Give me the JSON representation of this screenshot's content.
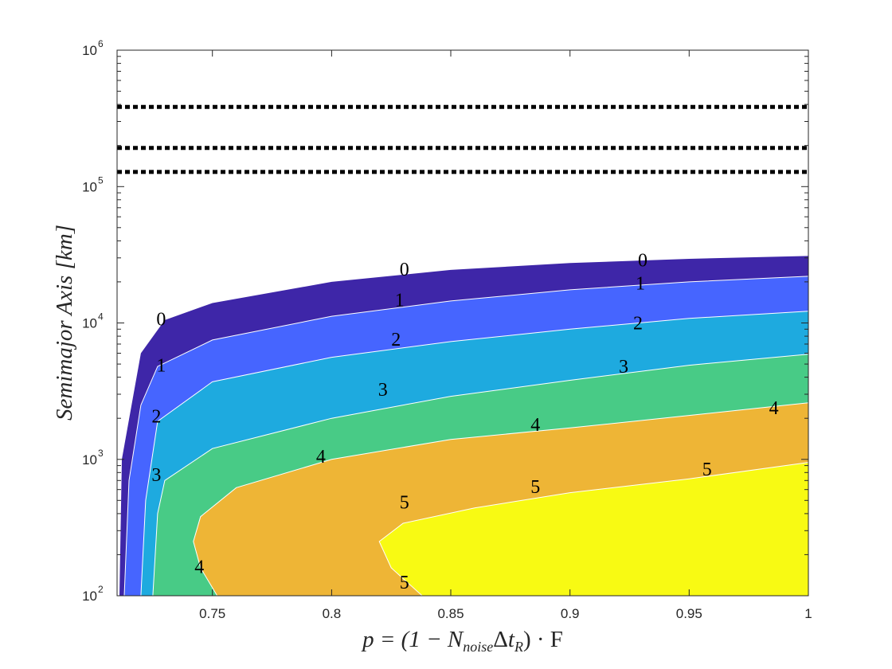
{
  "chart_data": {
    "type": "contour",
    "xlabel": "p = (1 − N_noise Δt_R) · F",
    "ylabel": "Semimajor Axis [km]",
    "xlim": [
      0.71,
      1.0
    ],
    "ylim": [
      100,
      1000000
    ],
    "yscale": "log",
    "grid": false,
    "x_ticks": [
      "0.75",
      "0.8",
      "0.85",
      "0.9",
      "0.95",
      "1"
    ],
    "y_ticks": [
      {
        "base": "10",
        "exp": "2"
      },
      {
        "base": "10",
        "exp": "3"
      },
      {
        "base": "10",
        "exp": "4"
      },
      {
        "base": "10",
        "exp": "5"
      },
      {
        "base": "10",
        "exp": "6"
      }
    ],
    "x_tick_values": [
      0.75,
      0.8,
      0.85,
      0.9,
      0.95,
      1.0
    ],
    "y_tick_values": [
      100,
      1000,
      10000,
      100000,
      1000000
    ],
    "reference_lines": [
      {
        "y": 384000,
        "style": "dotted",
        "color": "#000000"
      },
      {
        "y": 192000,
        "style": "dotted",
        "color": "#000000"
      },
      {
        "y": 128000,
        "style": "dotted",
        "color": "#000000"
      }
    ],
    "levels": [
      {
        "level": 0,
        "color": "#3e26a8",
        "boundary": [
          [
            0.711,
            100
          ],
          [
            0.712,
            1000
          ],
          [
            0.72,
            6000
          ],
          [
            0.73,
            10500
          ],
          [
            0.75,
            14000
          ],
          [
            0.8,
            20000
          ],
          [
            0.85,
            24500
          ],
          [
            0.9,
            27500
          ],
          [
            0.95,
            29500
          ],
          [
            1.0,
            31000
          ]
        ]
      },
      {
        "level": 1,
        "color": "#4665ff",
        "boundary": [
          [
            0.713,
            100
          ],
          [
            0.715,
            700
          ],
          [
            0.72,
            2500
          ],
          [
            0.727,
            4800
          ],
          [
            0.75,
            7500
          ],
          [
            0.8,
            11200
          ],
          [
            0.85,
            14500
          ],
          [
            0.9,
            17500
          ],
          [
            0.95,
            20000
          ],
          [
            1.0,
            22000
          ]
        ]
      },
      {
        "level": 2,
        "color": "#1eaadf",
        "boundary": [
          [
            0.72,
            100
          ],
          [
            0.722,
            500
          ],
          [
            0.727,
            1900
          ],
          [
            0.75,
            3700
          ],
          [
            0.8,
            5600
          ],
          [
            0.85,
            7300
          ],
          [
            0.9,
            9000
          ],
          [
            0.95,
            10800
          ],
          [
            1.0,
            12200
          ]
        ]
      },
      {
        "level": 3,
        "color": "#48cb86",
        "boundary": [
          [
            0.725,
            100
          ],
          [
            0.727,
            400
          ],
          [
            0.73,
            700
          ],
          [
            0.75,
            1200
          ],
          [
            0.8,
            2000
          ],
          [
            0.85,
            2900
          ],
          [
            0.9,
            3800
          ],
          [
            0.95,
            4900
          ],
          [
            1.0,
            5900
          ]
        ]
      },
      {
        "level": 4,
        "color": "#eeb536",
        "boundary": [
          [
            0.752,
            100
          ],
          [
            0.745,
            160
          ],
          [
            0.742,
            250
          ],
          [
            0.745,
            380
          ],
          [
            0.76,
            620
          ],
          [
            0.8,
            1000
          ],
          [
            0.85,
            1400
          ],
          [
            0.9,
            1700
          ],
          [
            0.95,
            2100
          ],
          [
            1.0,
            2600
          ]
        ]
      },
      {
        "level": 5,
        "color": "#f8fa13",
        "boundary": [
          [
            0.838,
            100
          ],
          [
            0.825,
            160
          ],
          [
            0.82,
            250
          ],
          [
            0.83,
            340
          ],
          [
            0.86,
            440
          ],
          [
            0.9,
            570
          ],
          [
            0.95,
            720
          ],
          [
            1.0,
            950
          ]
        ]
      }
    ],
    "contour_labels": [
      {
        "text": "0",
        "x": 0.7285,
        "y": 10700
      },
      {
        "text": "0",
        "x": 0.8305,
        "y": 24800
      },
      {
        "text": "0",
        "x": 0.9305,
        "y": 29000
      },
      {
        "text": "1",
        "x": 0.7285,
        "y": 4900
      },
      {
        "text": "1",
        "x": 0.8285,
        "y": 14800
      },
      {
        "text": "1",
        "x": 0.9295,
        "y": 19600
      },
      {
        "text": "2",
        "x": 0.7265,
        "y": 2070
      },
      {
        "text": "2",
        "x": 0.827,
        "y": 7600
      },
      {
        "text": "2",
        "x": 0.9285,
        "y": 10000
      },
      {
        "text": "3",
        "x": 0.7265,
        "y": 770
      },
      {
        "text": "3",
        "x": 0.8215,
        "y": 3250
      },
      {
        "text": "3",
        "x": 0.9225,
        "y": 4820
      },
      {
        "text": "4",
        "x": 0.7445,
        "y": 163
      },
      {
        "text": "4",
        "x": 0.7955,
        "y": 1050
      },
      {
        "text": "4",
        "x": 0.8855,
        "y": 1800
      },
      {
        "text": "4",
        "x": 0.9855,
        "y": 2390
      },
      {
        "text": "5",
        "x": 0.8305,
        "y": 126
      },
      {
        "text": "5",
        "x": 0.8305,
        "y": 484
      },
      {
        "text": "5",
        "x": 0.8855,
        "y": 630
      },
      {
        "text": "5",
        "x": 0.9575,
        "y": 850
      }
    ]
  }
}
